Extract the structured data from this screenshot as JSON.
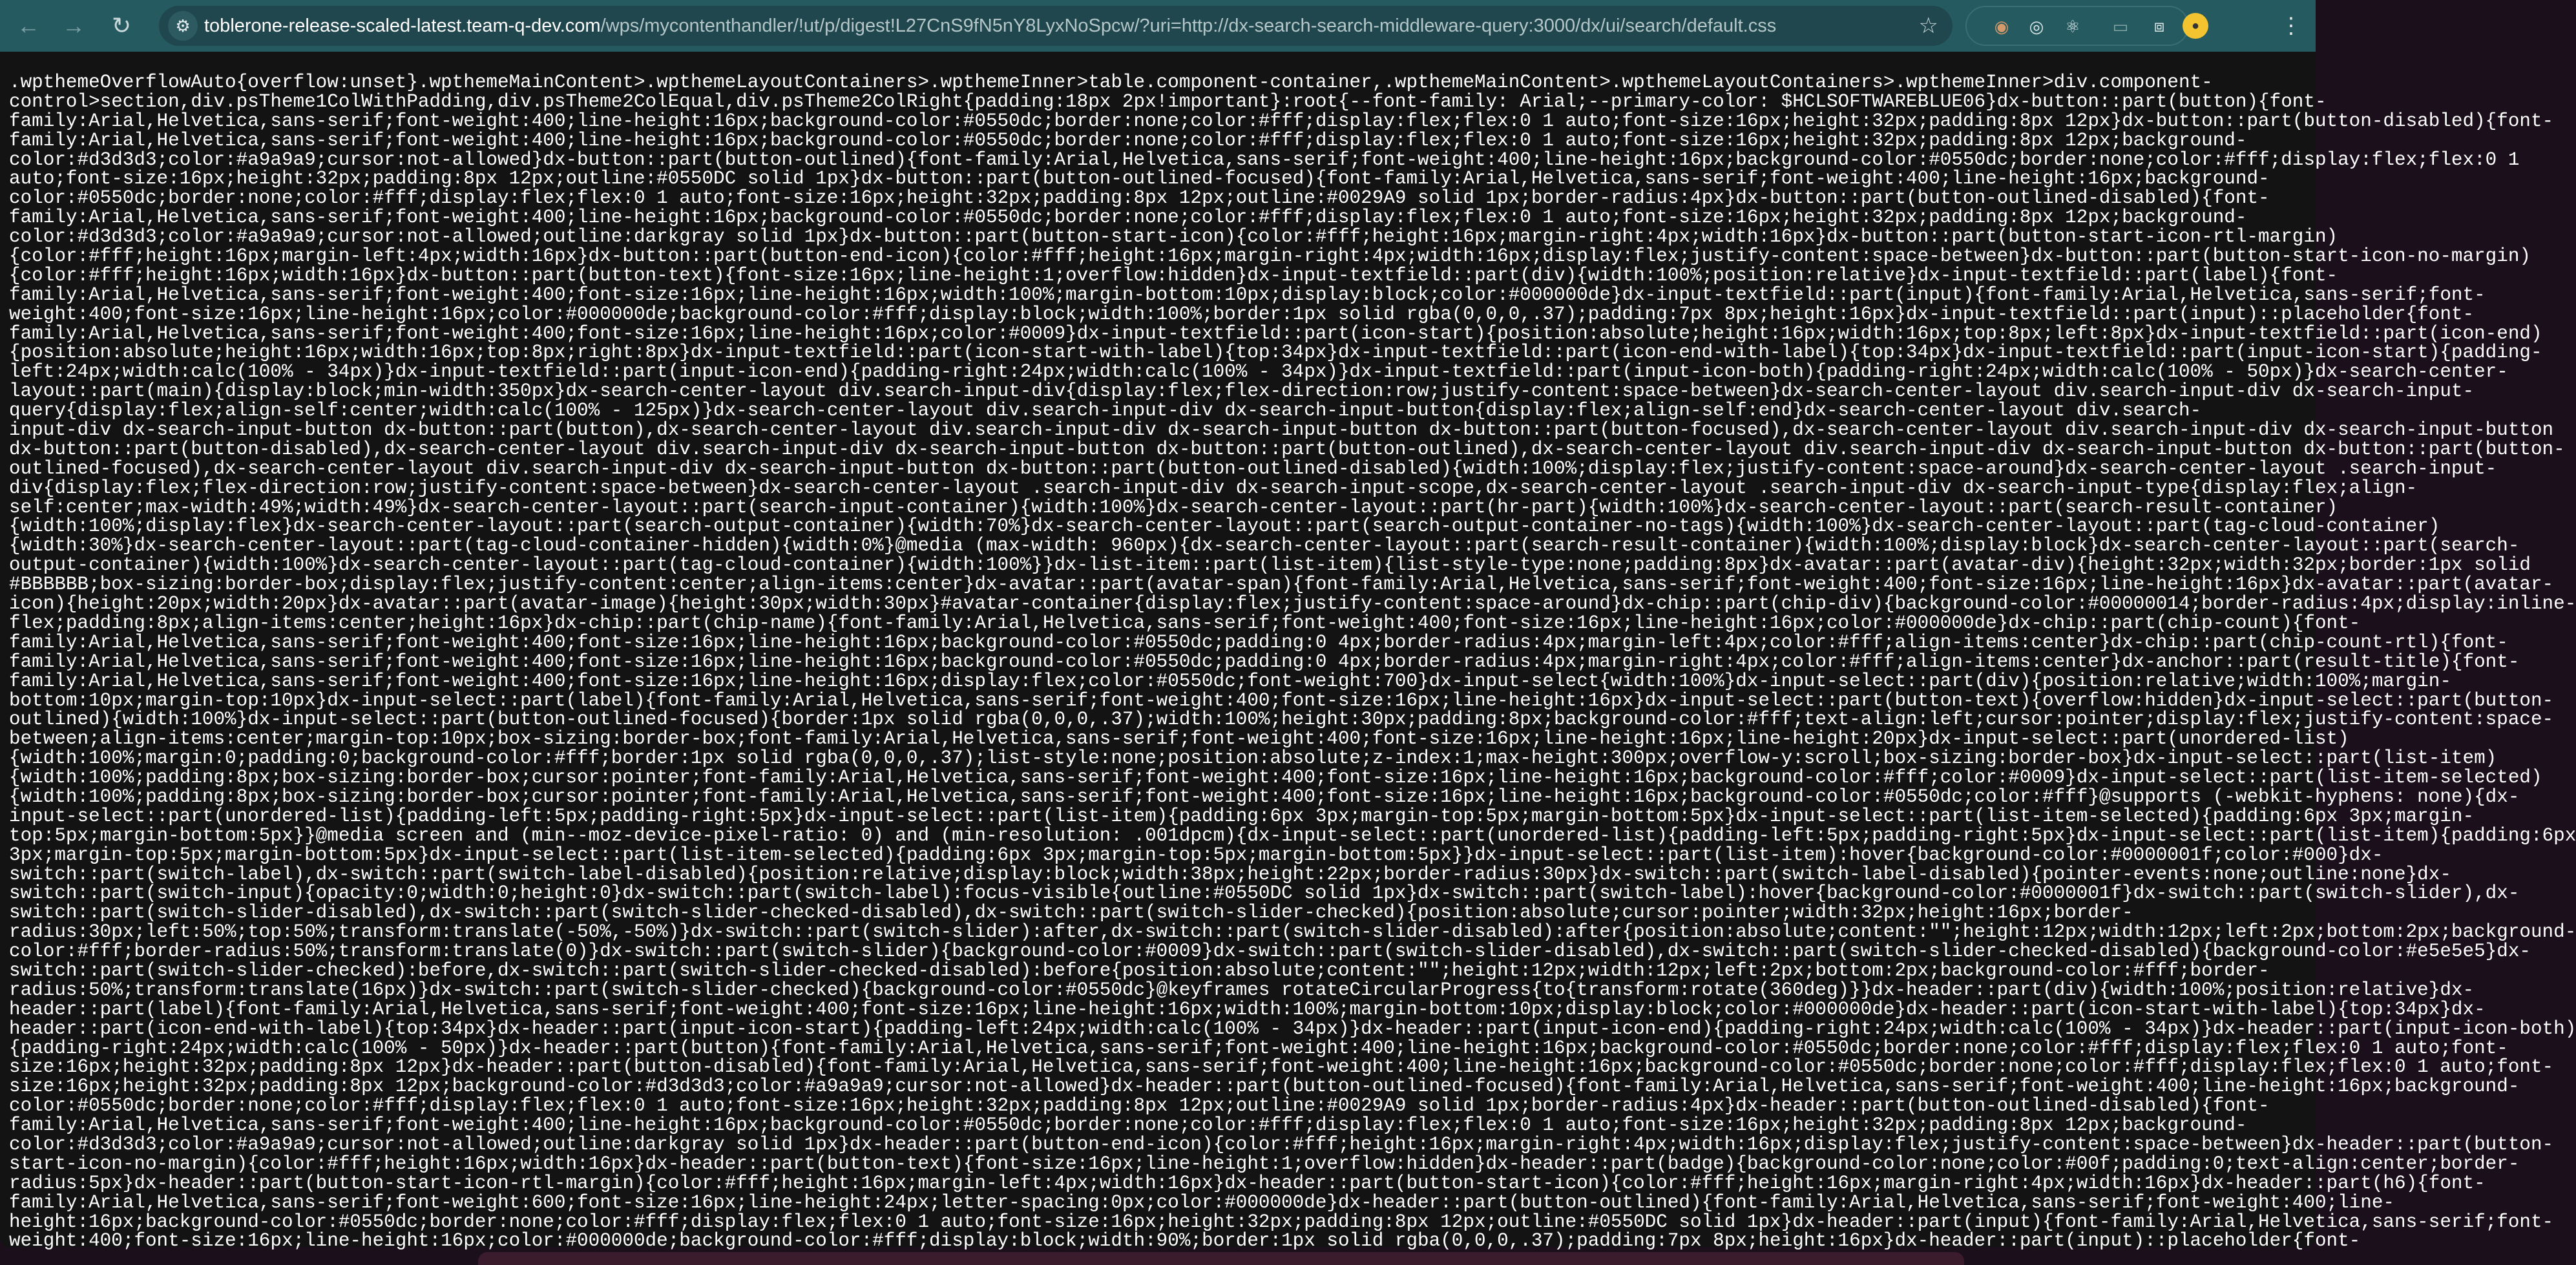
{
  "browser": {
    "url_host": "toblerone-release-scaled-latest.team-q-dev.com",
    "url_path": "/wps/mycontenthandler/!ut/p/digest!L27CnS9fN5nY8LyxNoSpcw/?uri=http://dx-search-search-middleware-query:3000/dx/ui/search/default.css",
    "icons": [
      "back-arrow-icon",
      "forward-arrow-icon",
      "reload-icon",
      "site-info-icon",
      "bookmark-star-icon",
      "extension-icons",
      "profile-avatar",
      "more-menu-icon"
    ]
  },
  "content": {
    "lines": [
      ".wpthemeOverflowAuto{overflow:unset}.wpthemeMainContent>.wpthemeLayoutContainers>.wpthemeInner>table.component-container,.wpthemeMainContent>.wpthemeLayoutContainers>.wpthemeInner>div.component-",
      "control>section,div.psTheme1ColWithPadding,div.psTheme2ColEqual,div.psTheme2ColRight{padding:18px 2px!important}:root{--font-family: Arial;--primary-color: $HCLSOFTWAREBLUE06}dx-button::part(button){font-",
      "family:Arial,Helvetica,sans-serif;font-weight:400;line-height:16px;background-color:#0550dc;border:none;color:#fff;display:flex;flex:0 1 auto;font-size:16px;height:32px;padding:8px 12px}dx-button::part(button-disabled){font-",
      "family:Arial,Helvetica,sans-serif;font-weight:400;line-height:16px;background-color:#0550dc;border:none;color:#fff;display:flex;flex:0 1 auto;font-size:16px;height:32px;padding:8px 12px;background-",
      "color:#d3d3d3;color:#a9a9a9;cursor:not-allowed}dx-button::part(button-outlined){font-family:Arial,Helvetica,sans-serif;font-weight:400;line-height:16px;background-color:#0550dc;border:none;color:#fff;display:flex;flex:0 1",
      "auto;font-size:16px;height:32px;padding:8px 12px;outline:#0550DC solid 1px}dx-button::part(button-outlined-focused){font-family:Arial,Helvetica,sans-serif;font-weight:400;line-height:16px;background-",
      "color:#0550dc;border:none;color:#fff;display:flex;flex:0 1 auto;font-size:16px;height:32px;padding:8px 12px;outline:#0029A9 solid 1px;border-radius:4px}dx-button::part(button-outlined-disabled){font-",
      "family:Arial,Helvetica,sans-serif;font-weight:400;line-height:16px;background-color:#0550dc;border:none;color:#fff;display:flex;flex:0 1 auto;font-size:16px;height:32px;padding:8px 12px;background-",
      "color:#d3d3d3;color:#a9a9a9;cursor:not-allowed;outline:darkgray solid 1px}dx-button::part(button-start-icon){color:#fff;height:16px;margin-right:4px;width:16px}dx-button::part(button-start-icon-rtl-margin)",
      "{color:#fff;height:16px;margin-left:4px;width:16px}dx-button::part(button-end-icon){color:#fff;height:16px;margin-right:4px;width:16px;display:flex;justify-content:space-between}dx-button::part(button-start-icon-no-margin)",
      "{color:#fff;height:16px;width:16px}dx-button::part(button-text){font-size:16px;line-height:1;overflow:hidden}dx-input-textfield::part(div){width:100%;position:relative}dx-input-textfield::part(label){font-",
      "family:Arial,Helvetica,sans-serif;font-weight:400;font-size:16px;line-height:16px;width:100%;margin-bottom:10px;display:block;color:#000000de}dx-input-textfield::part(input){font-family:Arial,Helvetica,sans-serif;font-",
      "weight:400;font-size:16px;line-height:16px;color:#000000de;background-color:#fff;display:block;width:100%;border:1px solid rgba(0,0,0,.37);padding:7px 8px;height:16px}dx-input-textfield::part(input)::placeholder{font-",
      "family:Arial,Helvetica,sans-serif;font-weight:400;font-size:16px;line-height:16px;color:#0009}dx-input-textfield::part(icon-start){position:absolute;height:16px;width:16px;top:8px;left:8px}dx-input-textfield::part(icon-end)",
      "{position:absolute;height:16px;width:16px;top:8px;right:8px}dx-input-textfield::part(icon-start-with-label){top:34px}dx-input-textfield::part(icon-end-with-label){top:34px}dx-input-textfield::part(input-icon-start){padding-",
      "left:24px;width:calc(100% - 34px)}dx-input-textfield::part(input-icon-end){padding-right:24px;width:calc(100% - 34px)}dx-input-textfield::part(input-icon-both){padding-right:24px;width:calc(100% - 50px)}dx-search-center-",
      "layout::part(main){display:block;min-width:350px}dx-search-center-layout div.search-input-div{display:flex;flex-direction:row;justify-content:space-between}dx-search-center-layout div.search-input-div dx-search-input-",
      "query{display:flex;align-self:center;width:calc(100% - 125px)}dx-search-center-layout div.search-input-div dx-search-input-button{display:flex;align-self:end}dx-search-center-layout div.search-",
      "input-div dx-search-input-button dx-button::part(button),dx-search-center-layout div.search-input-div dx-search-input-button dx-button::part(button-focused),dx-search-center-layout div.search-input-div dx-search-input-button",
      "dx-button::part(button-disabled),dx-search-center-layout div.search-input-div dx-search-input-button dx-button::part(button-outlined),dx-search-center-layout div.search-input-div dx-search-input-button dx-button::part(button-",
      "outlined-focused),dx-search-center-layout div.search-input-div dx-search-input-button dx-button::part(button-outlined-disabled){width:100%;display:flex;justify-content:space-around}dx-search-center-layout .search-input-",
      "div{display:flex;flex-direction:row;justify-content:space-between}dx-search-center-layout .search-input-div dx-search-input-scope,dx-search-center-layout .search-input-div dx-search-input-type{display:flex;align-",
      "self:center;max-width:49%;width:49%}dx-search-center-layout::part(search-input-container){width:100%}dx-search-center-layout::part(hr-part){width:100%}dx-search-center-layout::part(search-result-container)",
      "{width:100%;display:flex}dx-search-center-layout::part(search-output-container){width:70%}dx-search-center-layout::part(search-output-container-no-tags){width:100%}dx-search-center-layout::part(tag-cloud-container)",
      "{width:30%}dx-search-center-layout::part(tag-cloud-container-hidden){width:0%}@media (max-width: 960px){dx-search-center-layout::part(search-result-container){width:100%;display:block}dx-search-center-layout::part(search-",
      "output-container){width:100%}dx-search-center-layout::part(tag-cloud-container){width:100%}}dx-list-item::part(list-item){list-style-type:none;padding:8px}dx-avatar::part(avatar-div){height:32px;width:32px;border:1px solid",
      "#BBBBBB;box-sizing:border-box;display:flex;justify-content:center;align-items:center}dx-avatar::part(avatar-span){font-family:Arial,Helvetica,sans-serif;font-weight:400;font-size:16px;line-height:16px}dx-avatar::part(avatar-",
      "icon){height:20px;width:20px}dx-avatar::part(avatar-image){height:30px;width:30px}#avatar-container{display:flex;justify-content:space-around}dx-chip::part(chip-div){background-color:#00000014;border-radius:4px;display:inline-",
      "flex;padding:8px;align-items:center;height:16px}dx-chip::part(chip-name){font-family:Arial,Helvetica,sans-serif;font-weight:400;font-size:16px;line-height:16px;color:#000000de}dx-chip::part(chip-count){font-",
      "family:Arial,Helvetica,sans-serif;font-weight:400;font-size:16px;line-height:16px;background-color:#0550dc;padding:0 4px;border-radius:4px;margin-left:4px;color:#fff;align-items:center}dx-chip::part(chip-count-rtl){font-",
      "family:Arial,Helvetica,sans-serif;font-weight:400;font-size:16px;line-height:16px;background-color:#0550dc;padding:0 4px;border-radius:4px;margin-right:4px;color:#fff;align-items:center}dx-anchor::part(result-title){font-",
      "family:Arial,Helvetica,sans-serif;font-weight:400;font-size:16px;line-height:16px;display:flex;color:#0550dc;font-weight:700}dx-input-select{width:100%}dx-input-select::part(div){position:relative;width:100%;margin-",
      "bottom:10px;margin-top:10px}dx-input-select::part(label){font-family:Arial,Helvetica,sans-serif;font-weight:400;font-size:16px;line-height:16px}dx-input-select::part(button-text){overflow:hidden}dx-input-select::part(button-",
      "outlined){width:100%}dx-input-select::part(button-outlined-focused){border:1px solid rgba(0,0,0,.37);width:100%;height:30px;padding:8px;background-color:#fff;text-align:left;cursor:pointer;display:flex;justify-content:space-",
      "between;align-items:center;margin-top:10px;box-sizing:border-box;font-family:Arial,Helvetica,sans-serif;font-weight:400;font-size:16px;line-height:16px;line-height:20px}dx-input-select::part(unordered-list)",
      "{width:100%;margin:0;padding:0;background-color:#fff;border:1px solid rgba(0,0,0,.37);list-style:none;position:absolute;z-index:1;max-height:300px;overflow-y:scroll;box-sizing:border-box}dx-input-select::part(list-item)",
      "{width:100%;padding:8px;box-sizing:border-box;cursor:pointer;font-family:Arial,Helvetica,sans-serif;font-weight:400;font-size:16px;line-height:16px;background-color:#fff;color:#0009}dx-input-select::part(list-item-selected)",
      "{width:100%;padding:8px;box-sizing:border-box;cursor:pointer;font-family:Arial,Helvetica,sans-serif;font-weight:400;font-size:16px;line-height:16px;background-color:#0550dc;color:#fff}@supports (-webkit-hyphens: none){dx-",
      "input-select::part(unordered-list){padding-left:5px;padding-right:5px}dx-input-select::part(list-item){padding:6px 3px;margin-top:5px;margin-bottom:5px}dx-input-select::part(list-item-selected){padding:6px 3px;margin-",
      "top:5px;margin-bottom:5px}}@media screen and (min--moz-device-pixel-ratio: 0) and (min-resolution: .001dpcm){dx-input-select::part(unordered-list){padding-left:5px;padding-right:5px}dx-input-select::part(list-item){padding:6px",
      "3px;margin-top:5px;margin-bottom:5px}dx-input-select::part(list-item-selected){padding:6px 3px;margin-top:5px;margin-bottom:5px}}dx-input-select::part(list-item):hover{background-color:#0000001f;color:#000}dx-",
      "switch::part(switch-label),dx-switch::part(switch-label-disabled){position:relative;display:block;width:38px;height:22px;border-radius:30px}dx-switch::part(switch-label-disabled){pointer-events:none;outline:none}dx-",
      "switch::part(switch-input){opacity:0;width:0;height:0}dx-switch::part(switch-label):focus-visible{outline:#0550DC solid 1px}dx-switch::part(switch-label):hover{background-color:#0000001f}dx-switch::part(switch-slider),dx-",
      "switch::part(switch-slider-disabled),dx-switch::part(switch-slider-checked-disabled),dx-switch::part(switch-slider-checked){position:absolute;cursor:pointer;width:32px;height:16px;border-",
      "radius:30px;left:50%;top:50%;transform:translate(-50%,-50%)}dx-switch::part(switch-slider):after,dx-switch::part(switch-slider-disabled):after{position:absolute;content:\"\";height:12px;width:12px;left:2px;bottom:2px;background-",
      "color:#fff;border-radius:50%;transform:translate(0)}dx-switch::part(switch-slider){background-color:#0009}dx-switch::part(switch-slider-disabled),dx-switch::part(switch-slider-checked-disabled){background-color:#e5e5e5}dx-",
      "switch::part(switch-slider-checked):before,dx-switch::part(switch-slider-checked-disabled):before{position:absolute;content:\"\";height:12px;width:12px;left:2px;bottom:2px;background-color:#fff;border-",
      "radius:50%;transform:translate(16px)}dx-switch::part(switch-slider-checked){background-color:#0550dc}@keyframes rotateCircularProgress{to{transform:rotate(360deg)}}dx-header::part(div){width:100%;position:relative}dx-",
      "header::part(label){font-family:Arial,Helvetica,sans-serif;font-weight:400;font-size:16px;line-height:16px;width:100%;margin-bottom:10px;display:block;color:#000000de}dx-header::part(icon-start-with-label){top:34px}dx-",
      "header::part(icon-end-with-label){top:34px}dx-header::part(input-icon-start){padding-left:24px;width:calc(100% - 34px)}dx-header::part(input-icon-end){padding-right:24px;width:calc(100% - 34px)}dx-header::part(input-icon-both)",
      "{padding-right:24px;width:calc(100% - 50px)}dx-header::part(button){font-family:Arial,Helvetica,sans-serif;font-weight:400;line-height:16px;background-color:#0550dc;border:none;color:#fff;display:flex;flex:0 1 auto;font-",
      "size:16px;height:32px;padding:8px 12px}dx-header::part(button-disabled){font-family:Arial,Helvetica,sans-serif;font-weight:400;line-height:16px;background-color:#0550dc;border:none;color:#fff;display:flex;flex:0 1 auto;font-",
      "size:16px;height:32px;padding:8px 12px;background-color:#d3d3d3;color:#a9a9a9;cursor:not-allowed}dx-header::part(button-outlined-focused){font-family:Arial,Helvetica,sans-serif;font-weight:400;line-height:16px;background-",
      "color:#0550dc;border:none;color:#fff;display:flex;flex:0 1 auto;font-size:16px;height:32px;padding:8px 12px;outline:#0029A9 solid 1px;border-radius:4px}dx-header::part(button-outlined-disabled){font-",
      "family:Arial,Helvetica,sans-serif;font-weight:400;line-height:16px;background-color:#0550dc;border:none;color:#fff;display:flex;flex:0 1 auto;font-size:16px;height:32px;padding:8px 12px;background-",
      "color:#d3d3d3;color:#a9a9a9;cursor:not-allowed;outline:darkgray solid 1px}dx-header::part(button-end-icon){color:#fff;height:16px;margin-right:4px;width:16px;display:flex;justify-content:space-between}dx-header::part(button-",
      "start-icon-no-margin){color:#fff;height:16px;width:16px}dx-header::part(button-text){font-size:16px;line-height:1;overflow:hidden}dx-header::part(badge){background-color:none;color:#00f;padding:0;text-align:center;border-",
      "radius:5px}dx-header::part(button-start-icon-rtl-margin){color:#fff;height:16px;margin-left:4px;width:16px}dx-header::part(button-start-icon){color:#fff;height:16px;margin-right:4px;width:16px}dx-header::part(h6){font-",
      "family:Arial,Helvetica,sans-serif;font-weight:600;font-size:16px;line-height:24px;letter-spacing:0px;color:#000000de}dx-header::part(button-outlined){font-family:Arial,Helvetica,sans-serif;font-weight:400;line-",
      "height:16px;background-color:#0550dc;border:none;color:#fff;display:flex;flex:0 1 auto;font-size:16px;height:32px;padding:8px 12px;outline:#0550DC solid 1px}dx-header::part(input){font-family:Arial,Helvetica,sans-serif;font-",
      "weight:400;font-size:16px;line-height:16px;color:#000000de;background-color:#fff;display:block;width:90%;border:1px solid rgba(0,0,0,.37);padding:7px 8px;height:16px}dx-header::part(input)::placeholder{font-"
    ]
  }
}
